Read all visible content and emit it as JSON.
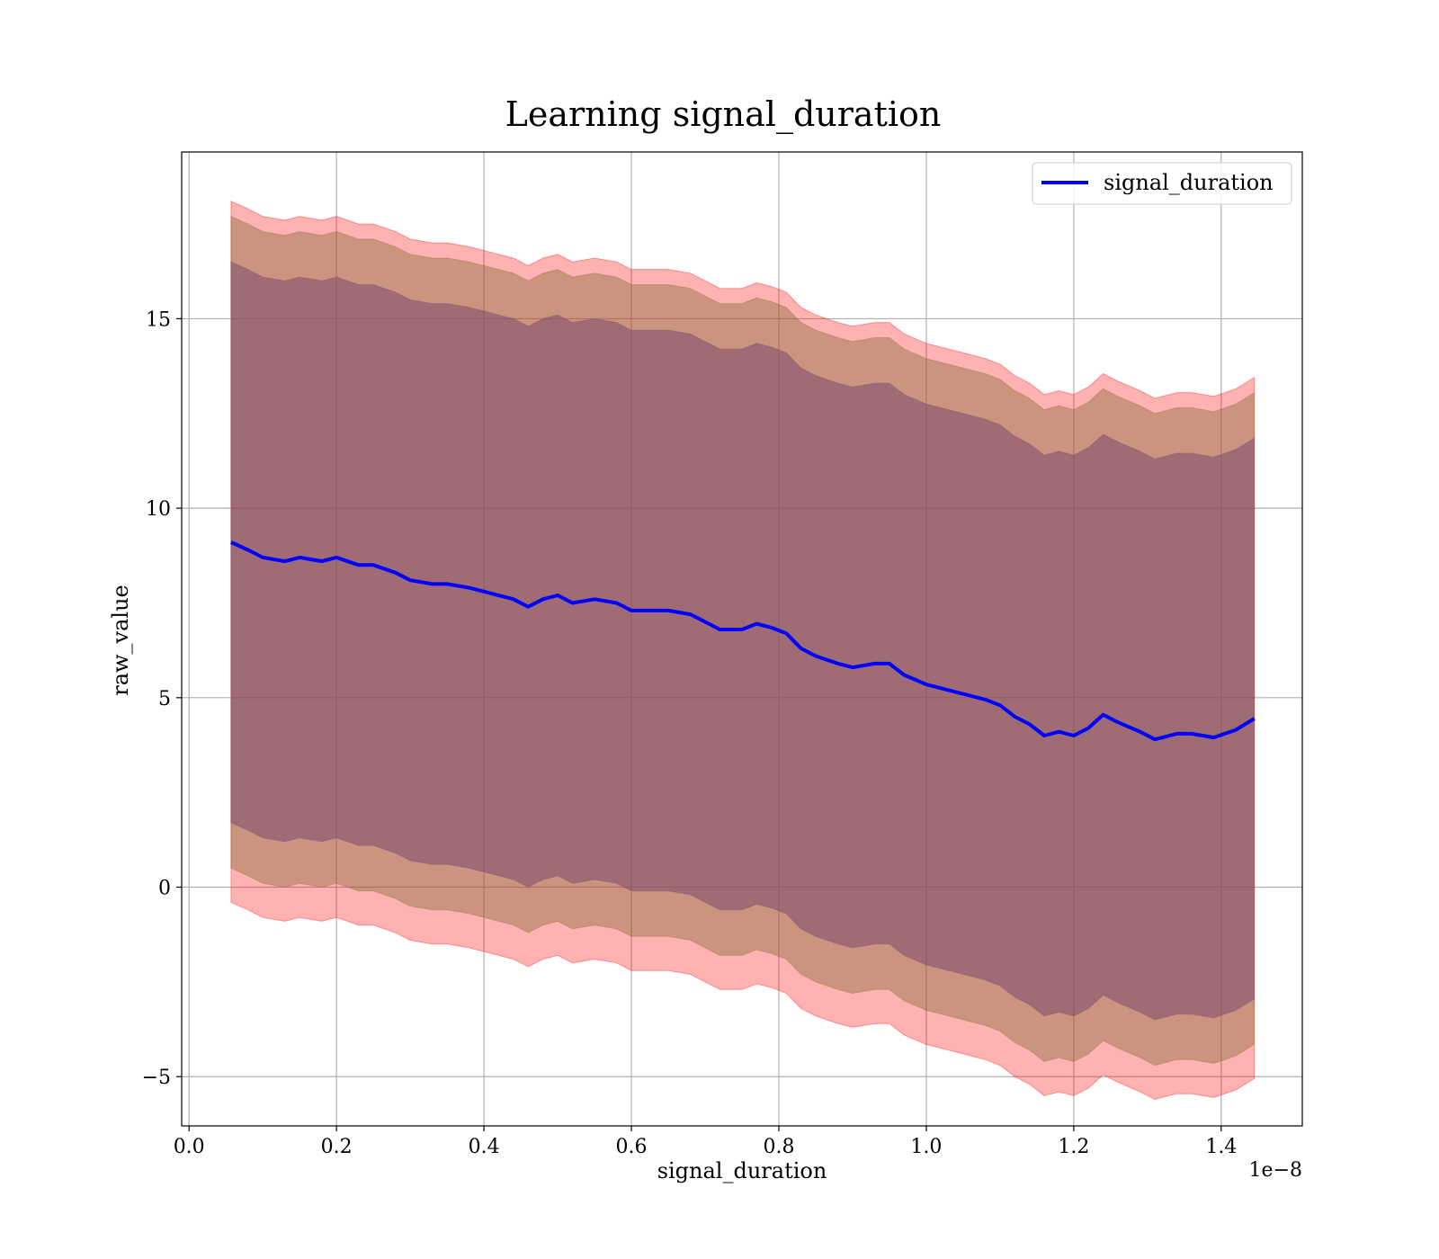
{
  "chart_data": {
    "type": "line",
    "title": "Learning signal_duration",
    "xlabel": "signal_duration",
    "ylabel": "raw_value",
    "x_offset_label": "1e−8",
    "xlim": [
      -0.01,
      1.51
    ],
    "ylim": [
      -6.3,
      19.4
    ],
    "x_ticks": [
      0.0,
      0.2,
      0.4,
      0.6,
      0.8,
      1.0,
      1.2,
      1.4
    ],
    "x_tick_labels": [
      "0.0",
      "0.2",
      "0.4",
      "0.6",
      "0.8",
      "1.0",
      "1.2",
      "1.4"
    ],
    "y_ticks": [
      -5,
      0,
      5,
      10,
      15
    ],
    "y_tick_labels": [
      "−5",
      "0",
      "5",
      "10",
      "15"
    ],
    "grid": true,
    "legend_position": "top-right",
    "x": [
      0.057,
      0.08,
      0.1,
      0.13,
      0.15,
      0.18,
      0.2,
      0.23,
      0.25,
      0.28,
      0.3,
      0.33,
      0.35,
      0.38,
      0.4,
      0.42,
      0.44,
      0.46,
      0.48,
      0.5,
      0.52,
      0.55,
      0.58,
      0.6,
      0.62,
      0.65,
      0.68,
      0.7,
      0.72,
      0.75,
      0.77,
      0.79,
      0.81,
      0.83,
      0.85,
      0.88,
      0.9,
      0.93,
      0.95,
      0.97,
      1.0,
      1.03,
      1.06,
      1.08,
      1.1,
      1.12,
      1.14,
      1.16,
      1.18,
      1.2,
      1.22,
      1.24,
      1.26,
      1.29,
      1.31,
      1.34,
      1.36,
      1.39,
      1.42,
      1.445
    ],
    "series": [
      {
        "name": "signal_duration",
        "color": "#0000ff",
        "values": [
          9.1,
          8.9,
          8.7,
          8.6,
          8.7,
          8.6,
          8.7,
          8.5,
          8.5,
          8.3,
          8.1,
          8.0,
          8.0,
          7.9,
          7.8,
          7.7,
          7.6,
          7.4,
          7.6,
          7.7,
          7.5,
          7.6,
          7.5,
          7.3,
          7.3,
          7.3,
          7.2,
          7.0,
          6.8,
          6.8,
          6.95,
          6.85,
          6.7,
          6.3,
          6.1,
          5.9,
          5.8,
          5.9,
          5.9,
          5.6,
          5.35,
          5.2,
          5.05,
          4.95,
          4.8,
          4.5,
          4.3,
          4.0,
          4.1,
          4.0,
          4.2,
          4.55,
          4.35,
          4.1,
          3.9,
          4.05,
          4.05,
          3.95,
          4.15,
          4.45
        ]
      }
    ],
    "bands": [
      {
        "color": "#ff0000",
        "opacity": 0.3,
        "offset_upper": 9.0,
        "offset_lower": 9.5
      },
      {
        "color": "#8b6f3d",
        "opacity": 0.45,
        "offset_upper": 8.6,
        "offset_lower": 8.6
      },
      {
        "color": "#7b4a6f",
        "opacity": 0.55,
        "offset_upper": 7.4,
        "offset_lower": 7.4
      }
    ]
  }
}
